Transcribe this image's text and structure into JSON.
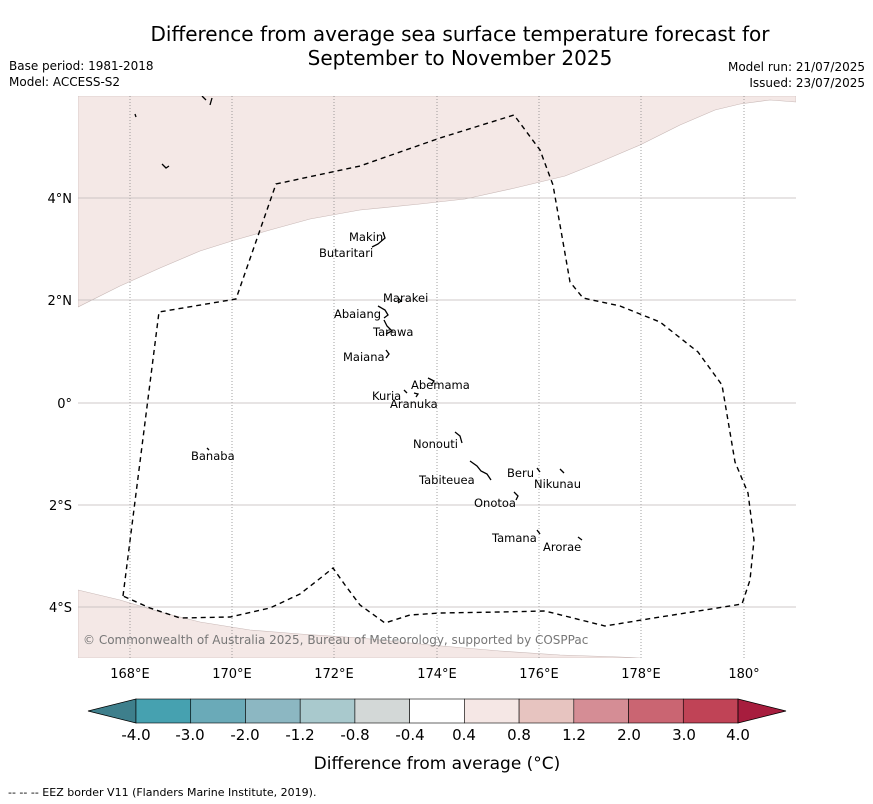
{
  "header": {
    "title_line1": "Difference from average sea surface temperature forecast for",
    "title_line2": "September to November 2025",
    "base_period": "Base period: 1981-2018",
    "model": "Model: ACCESS-S2",
    "model_run": "Model run: 21/07/2025",
    "issued": "Issued: 23/07/2025"
  },
  "map": {
    "lon_labels": [
      "168°E",
      "170°E",
      "172°E",
      "174°E",
      "176°E",
      "178°E",
      "180°"
    ],
    "lat_labels": [
      "4°N",
      "2°N",
      "0°",
      "2°S",
      "4°S"
    ],
    "places": {
      "makin": "Makin",
      "butaritari": "Butaritari",
      "marakei": "Marakei",
      "abaiang": "Abaiang",
      "tarawa": "Tarawa",
      "maiana": "Maiana",
      "abemama": "Abemama",
      "kuria": "Kuria",
      "aranuka": "Aranuka",
      "nonouti": "Nonouti",
      "banaba": "Banaba",
      "beru": "Beru",
      "nikunau": "Nikunau",
      "tabiteuea": "Tabiteuea",
      "onotoa": "Onotoa",
      "tamana": "Tamana",
      "arorae": "Arorae"
    },
    "copyright": "© Commonwealth of Australia 2025, Bureau of Meteorology, supported by COSPPac",
    "anomaly_fill_color": "#f4e8e6"
  },
  "colorbar": {
    "title": "Difference from average (°C)",
    "labels": [
      "-4.0",
      "-3.0",
      "-2.0",
      "-1.2",
      "-0.8",
      "-0.4",
      "0.4",
      "0.8",
      "1.2",
      "2.0",
      "3.0",
      "4.0"
    ],
    "colors": [
      "#3e7f8c",
      "#46a1b0",
      "#6aaab8",
      "#8cb7c2",
      "#a9c9cd",
      "#d3d8d7",
      "#ffffff",
      "#f5e7e5",
      "#e7c4c0",
      "#d58d95",
      "#ca6572",
      "#c04356",
      "#a71d3e"
    ]
  },
  "footer": "--  --  -- EEZ border V11 (Flanders Marine Institute, 2019)."
}
